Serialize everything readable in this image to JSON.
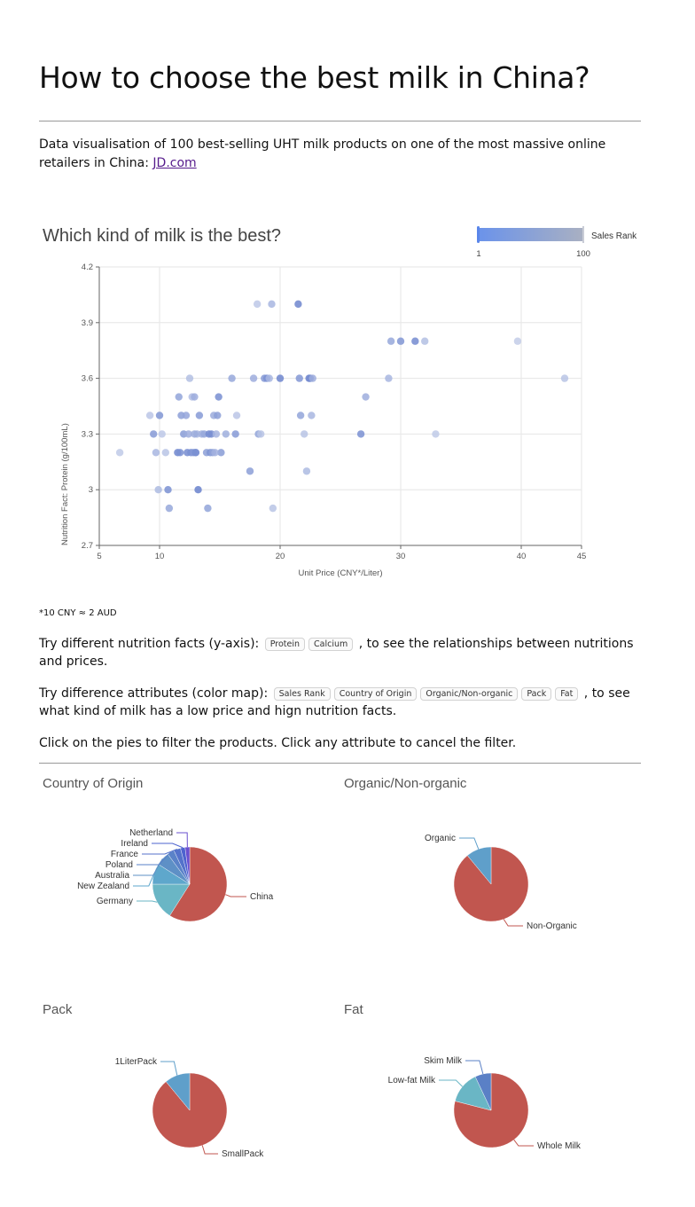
{
  "page": {
    "title": "How to choose the best milk in China?",
    "intro_text": "Data visualisation of 100 best-selling UHT milk products on one of the most massive online retailers in China: ",
    "intro_link": "JD.com",
    "footnote": "*10 CNY ≈ 2 AUD",
    "y_prompt_before": "Try different nutrition facts (y-axis): ",
    "y_prompt_after": " , to see the relationships between nutritions and prices.",
    "y_options": [
      "Protein",
      "Calcium"
    ],
    "color_prompt_before": "Try difference attributes (color map): ",
    "color_prompt_after": " , to see what kind of milk has a low price and hign nutrition facts.",
    "color_options": [
      "Sales Rank",
      "Country of Origin",
      "Organic/Non-organic",
      "Pack",
      "Fat"
    ],
    "filter_hint": "Click on the pies to filter the products. Click any attribute to cancel the filter."
  },
  "chart_data": [
    {
      "type": "scatter",
      "title": "Which kind of milk is the best?",
      "xlabel": "Unit Price (CNY*/Liter)",
      "ylabel": "Nutrition Fact: Protein (g/100mL)",
      "xlim": [
        5,
        45
      ],
      "ylim": [
        2.7,
        4.2
      ],
      "xticks": [
        5,
        10,
        20,
        30,
        40,
        45
      ],
      "yticks": [
        2.7,
        3,
        3.3,
        3.6,
        3.9,
        4.2
      ],
      "ytick_labels": [
        "2.7",
        "3",
        "3.3",
        "3.6",
        "3.9",
        "4.2"
      ],
      "grid": true,
      "visual_map": {
        "label": "Sales Rank",
        "min": 1,
        "max": 100,
        "min_label": "1",
        "max_label": "100",
        "color_low_rank": "#5470c6",
        "color_high_rank": "#c8d1ea"
      },
      "points": [
        [
          6.7,
          3.2,
          92
        ],
        [
          9.2,
          3.4,
          88
        ],
        [
          9.5,
          3.3,
          40
        ],
        [
          9.7,
          3.2,
          70
        ],
        [
          10,
          3.4,
          35
        ],
        [
          10.2,
          3.3,
          90
        ],
        [
          10.5,
          3.2,
          85
        ],
        [
          10.7,
          3,
          30
        ],
        [
          10.8,
          2.9,
          55
        ],
        [
          9.9,
          3.0,
          75
        ],
        [
          11.5,
          3.2,
          20
        ],
        [
          11.6,
          3.5,
          50
        ],
        [
          11.8,
          3.4,
          45
        ],
        [
          12,
          3.3,
          42
        ],
        [
          12.2,
          3.4,
          52
        ],
        [
          12.3,
          3.2,
          25
        ],
        [
          12.4,
          3.3,
          60
        ],
        [
          12.5,
          3.6,
          80
        ],
        [
          12.6,
          3.2,
          30
        ],
        [
          12.7,
          3.5,
          78
        ],
        [
          12.8,
          3.2,
          38
        ],
        [
          12.9,
          3.5,
          60
        ],
        [
          13,
          3.2,
          22
        ],
        [
          13.1,
          3.3,
          70
        ],
        [
          13.2,
          3.0,
          15
        ],
        [
          13.3,
          3.4,
          40
        ],
        [
          13.5,
          3.3,
          65
        ],
        [
          13.7,
          3.3,
          55
        ],
        [
          13.9,
          3.2,
          45
        ],
        [
          14,
          2.9,
          50
        ],
        [
          14.1,
          3.3,
          25
        ],
        [
          14.2,
          3.2,
          35
        ],
        [
          14.3,
          3.3,
          28
        ],
        [
          14.4,
          3.2,
          48
        ],
        [
          14.5,
          3.4,
          58
        ],
        [
          14.7,
          3.3,
          68
        ],
        [
          14.8,
          3.4,
          45
        ],
        [
          14.9,
          3.5,
          28
        ],
        [
          15.1,
          3.2,
          42
        ],
        [
          15.5,
          3.3,
          62
        ],
        [
          16,
          3.6,
          55
        ],
        [
          16.3,
          3.3,
          40
        ],
        [
          16.4,
          3.4,
          88
        ],
        [
          17.5,
          3.1,
          45
        ],
        [
          17.8,
          3.6,
          60
        ],
        [
          18.2,
          3.3,
          50
        ],
        [
          18.4,
          3.3,
          85
        ],
        [
          18.7,
          3.6,
          40
        ],
        [
          18.9,
          3.6,
          30
        ],
        [
          19.1,
          3.6,
          70
        ],
        [
          18.1,
          4.0,
          90
        ],
        [
          19.3,
          4.0,
          70
        ],
        [
          19.4,
          2.9,
          85
        ],
        [
          20,
          3.6,
          20
        ],
        [
          21.5,
          4.0,
          20
        ],
        [
          21.6,
          3.6,
          38
        ],
        [
          21.7,
          3.4,
          50
        ],
        [
          22,
          3.3,
          85
        ],
        [
          22.2,
          3.1,
          75
        ],
        [
          22.4,
          3.6,
          18
        ],
        [
          22.5,
          3.6,
          25
        ],
        [
          22.6,
          3.4,
          70
        ],
        [
          22.7,
          3.6,
          60
        ],
        [
          26.7,
          3.3,
          30
        ],
        [
          27.1,
          3.5,
          60
        ],
        [
          29,
          3.6,
          70
        ],
        [
          29.2,
          3.8,
          55
        ],
        [
          30,
          3.8,
          35
        ],
        [
          31.2,
          3.8,
          25
        ],
        [
          32,
          3.8,
          80
        ],
        [
          32.9,
          3.3,
          92
        ],
        [
          39.7,
          3.8,
          95
        ],
        [
          43.6,
          3.6,
          85
        ],
        [
          13.0,
          3.2,
          32
        ],
        [
          12.9,
          3.3,
          58
        ],
        [
          11.7,
          3.2,
          30
        ],
        [
          14.6,
          3.2,
          66
        ]
      ]
    },
    {
      "type": "pie",
      "title": "Country of Origin",
      "labels": [
        "China",
        "Germany",
        "New Zealand",
        "Australia",
        "Poland",
        "France",
        "Ireland",
        "Netherland"
      ],
      "values": [
        59,
        16,
        9,
        6,
        3,
        3,
        2,
        2
      ],
      "colors": [
        "#c1564f",
        "#6ab6c5",
        "#5ea7cc",
        "#5e90c6",
        "#5a82c8",
        "#5472cb",
        "#4e63cf",
        "#6a50cf"
      ]
    },
    {
      "type": "pie",
      "title": "Organic/Non-organic",
      "labels": [
        "Non-Organic",
        "Organic"
      ],
      "values": [
        89,
        11
      ],
      "colors": [
        "#c1564f",
        "#5f9fca"
      ]
    },
    {
      "type": "pie",
      "title": "Pack",
      "labels": [
        "SmallPack",
        "1LiterPack"
      ],
      "values": [
        89,
        11
      ],
      "colors": [
        "#c1564f",
        "#5f9fca"
      ]
    },
    {
      "type": "pie",
      "title": "Fat",
      "labels": [
        "Whole Milk",
        "Low-fat Milk",
        "Skim Milk"
      ],
      "values": [
        79,
        14,
        7
      ],
      "colors": [
        "#c1564f",
        "#6ab6c5",
        "#5a80c6"
      ]
    }
  ]
}
